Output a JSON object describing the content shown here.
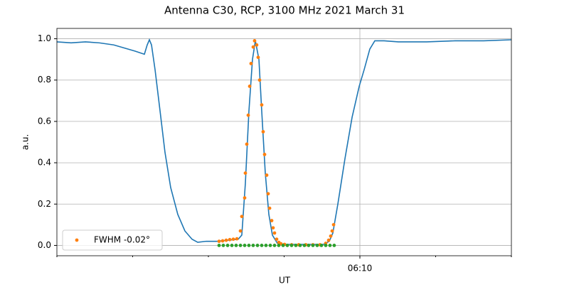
{
  "chart_data": {
    "type": "line",
    "title": "Antenna C30, RCP, 3100 MHz 2021 March 31",
    "x_label": "UT",
    "y_label": "a.u.",
    "xlim": [
      366,
      372
    ],
    "ylim": [
      -0.05,
      1.05
    ],
    "xticks": [
      {
        "value": 370,
        "label": "06:10"
      }
    ],
    "xminorticks": [
      366,
      367,
      368,
      369,
      371,
      372
    ],
    "yticks": [
      {
        "value": 0,
        "label": "0.0"
      },
      {
        "value": 0.2,
        "label": "0.2"
      },
      {
        "value": 0.4,
        "label": "0.4"
      },
      {
        "value": 0.6,
        "label": "0.6"
      },
      {
        "value": 0.8,
        "label": "0.8"
      },
      {
        "value": 1,
        "label": "1.0"
      }
    ],
    "grid": true,
    "legend": "lower left",
    "series": [
      {
        "style": "line",
        "color": "#1f77b4",
        "x": [
          366.0,
          366.188,
          366.376,
          366.563,
          366.751,
          366.892,
          367.033,
          367.155,
          367.192,
          367.221,
          367.249,
          367.296,
          367.362,
          367.427,
          367.502,
          367.596,
          367.69,
          367.784,
          367.859,
          367.972,
          368.113,
          368.254,
          368.394,
          368.441,
          368.488,
          368.535,
          368.582,
          368.62,
          368.667,
          368.704,
          368.751,
          368.798,
          368.845,
          368.911,
          369.005,
          369.192,
          369.38,
          369.521,
          369.596,
          369.643,
          369.709,
          369.803,
          369.897,
          369.991,
          370.056,
          370.131,
          370.197,
          370.319,
          370.507,
          370.883,
          371.258,
          371.634,
          372.0
        ],
        "values": [
          0.985,
          0.98,
          0.985,
          0.98,
          0.97,
          0.955,
          0.94,
          0.925,
          0.97,
          0.995,
          0.97,
          0.85,
          0.65,
          0.45,
          0.28,
          0.15,
          0.07,
          0.03,
          0.015,
          0.02,
          0.02,
          0.025,
          0.03,
          0.05,
          0.3,
          0.65,
          0.9,
          0.99,
          0.9,
          0.65,
          0.35,
          0.15,
          0.05,
          0.01,
          0.005,
          0.005,
          0.005,
          0.005,
          0.02,
          0.06,
          0.2,
          0.42,
          0.62,
          0.77,
          0.85,
          0.95,
          0.99,
          0.99,
          0.985,
          0.985,
          0.99,
          0.99,
          0.995
        ]
      },
      {
        "style": "points",
        "color": "#ff7f0e",
        "name": "FWHM -0.02°",
        "x": [
          368.141,
          368.188,
          368.235,
          368.282,
          368.329,
          368.376,
          368.423,
          368.441,
          368.479,
          368.488,
          368.507,
          368.526,
          368.545,
          368.563,
          368.592,
          368.61,
          368.638,
          368.657,
          368.676,
          368.704,
          368.723,
          368.742,
          368.77,
          368.789,
          368.808,
          368.836,
          368.854,
          368.873,
          368.901,
          368.93,
          368.958,
          369.005,
          369.099,
          369.192,
          369.286,
          369.38,
          369.474,
          369.549,
          369.587,
          369.615,
          369.634,
          369.653
        ],
        "values": [
          0.02,
          0.022,
          0.025,
          0.028,
          0.03,
          0.032,
          0.07,
          0.14,
          0.23,
          0.35,
          0.49,
          0.63,
          0.77,
          0.88,
          0.96,
          0.99,
          0.97,
          0.91,
          0.8,
          0.68,
          0.55,
          0.44,
          0.34,
          0.25,
          0.18,
          0.12,
          0.085,
          0.06,
          0.03,
          0.015,
          0.008,
          0.005,
          0.003,
          0.003,
          0.003,
          0.003,
          0.003,
          0.01,
          0.025,
          0.045,
          0.07,
          0.1
        ]
      },
      {
        "style": "points",
        "color": "#2ca02c",
        "x": [
          368.141,
          368.197,
          368.254,
          368.31,
          368.366,
          368.423,
          368.479,
          368.535,
          368.591,
          368.648,
          368.704,
          368.76,
          368.817,
          368.873,
          368.929,
          368.986,
          369.042,
          369.098,
          369.154,
          369.211,
          369.267,
          369.323,
          369.38,
          369.436,
          369.492,
          369.549,
          369.605,
          369.661
        ],
        "values": [
          0,
          0,
          0,
          0,
          0,
          0,
          0,
          0,
          0,
          0,
          0,
          0,
          0,
          0,
          0,
          0,
          0,
          0,
          0,
          0,
          0,
          0,
          0,
          0,
          0,
          0,
          0,
          0
        ]
      }
    ]
  }
}
